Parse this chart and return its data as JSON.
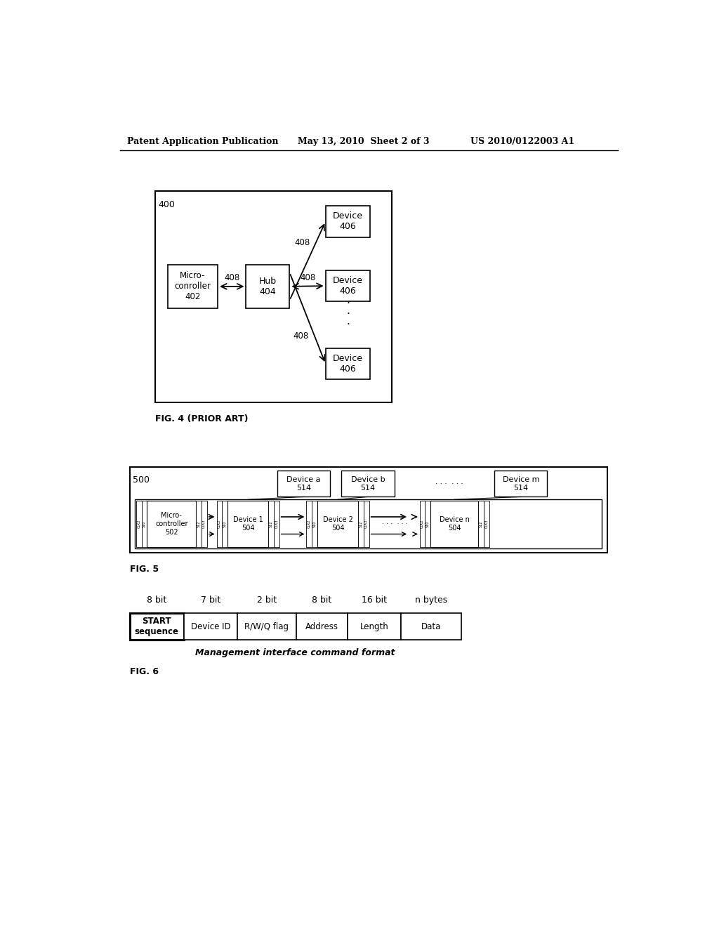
{
  "header_left": "Patent Application Publication",
  "header_mid": "May 13, 2010  Sheet 2 of 3",
  "header_right": "US 2010/0122003 A1",
  "fig4_label": "FIG. 4 (PRIOR ART)",
  "fig5_label": "FIG. 5",
  "fig6_label": "FIG. 6",
  "bg_color": "#ffffff",
  "text_color": "#000000",
  "fig6_table": {
    "headers": [
      "START\nsequence",
      "Device ID",
      "R/W/Q flag",
      "Address",
      "Length",
      "Data"
    ],
    "bits": [
      "8 bit",
      "7 bit",
      "2 bit",
      "8 bit",
      "16 bit",
      "n bytes"
    ],
    "caption": "Management interface command format"
  }
}
